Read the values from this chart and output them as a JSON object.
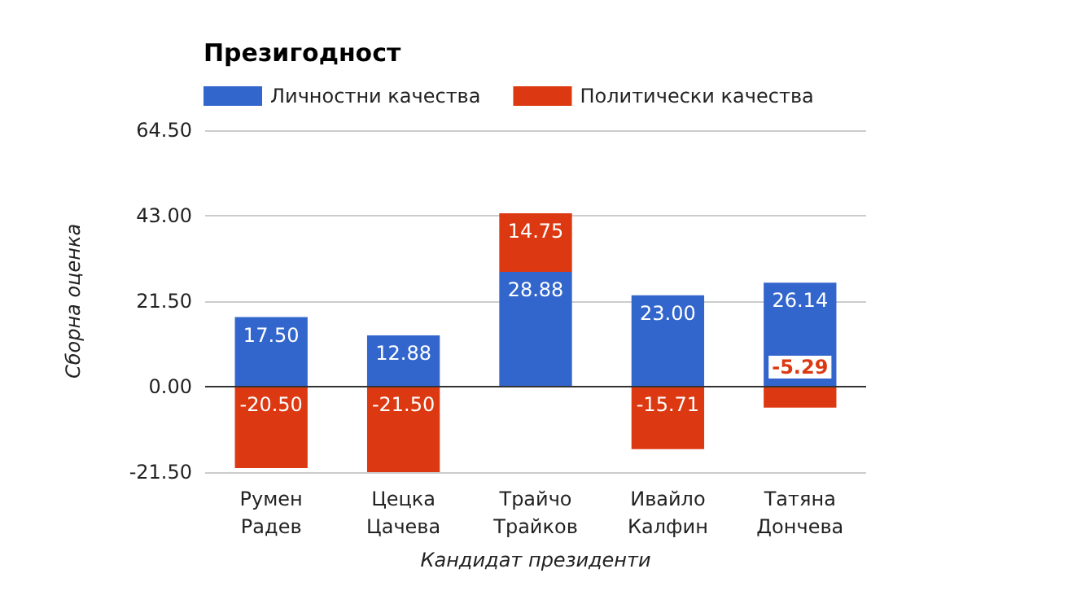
{
  "chart_data": {
    "type": "bar",
    "title": "Презигодност",
    "xlabel": "Кандидат президенти",
    "ylabel": "Сборна оценка",
    "categories": [
      "Румен\nРадев",
      "Цецка\nЦачева",
      "Трайчо\nТрайков",
      "Ивайло\nКалфин",
      "Татяна\nДончева"
    ],
    "stacked": true,
    "series": [
      {
        "name": "Личностни качества",
        "color": "#3366cc",
        "values": [
          17.5,
          12.88,
          28.88,
          23.0,
          26.14
        ],
        "value_labels": [
          "17.50",
          "12.88",
          "28.88",
          "23.00",
          "26.14"
        ]
      },
      {
        "name": "Политически качества",
        "color": "#dc3912",
        "values": [
          -20.5,
          -21.5,
          14.75,
          -15.71,
          -5.29
        ],
        "value_labels": [
          "-20.50",
          "-21.50",
          "14.75",
          "-15.71",
          "-5.29"
        ]
      }
    ],
    "ylim": [
      -21.5,
      64.5
    ],
    "yticks": [
      {
        "value": -21.5,
        "label": "-21.50"
      },
      {
        "value": 0,
        "label": "0.00"
      },
      {
        "value": 21.5,
        "label": "21.50"
      },
      {
        "value": 43,
        "label": "43.00"
      },
      {
        "value": 64.5,
        "label": "64.50"
      }
    ],
    "grid": "y",
    "legend": "top left"
  }
}
